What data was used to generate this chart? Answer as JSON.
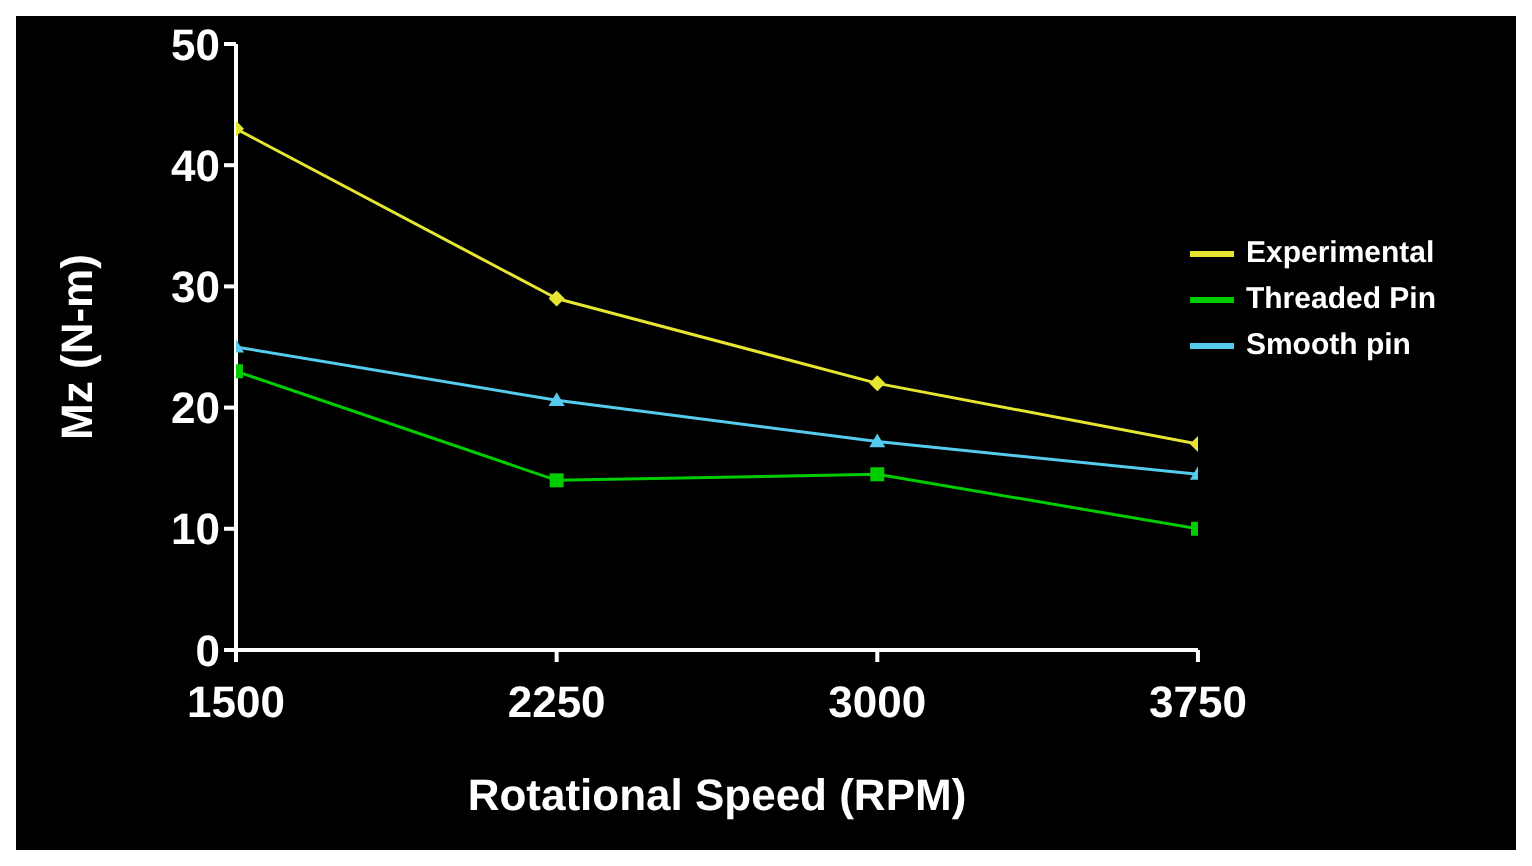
{
  "chart_data": {
    "type": "line",
    "xlabel": "Rotational Speed (RPM)",
    "ylabel": "Mz (N-m)",
    "x": [
      1500,
      2250,
      3000,
      3750
    ],
    "xlim": [
      1500,
      3750
    ],
    "xticks": [
      1500,
      2250,
      3000,
      3750
    ],
    "ylim": [
      0,
      50
    ],
    "yticks": [
      0,
      10,
      20,
      30,
      40,
      50
    ],
    "grid": false,
    "legend": "top right",
    "series": [
      {
        "name": "Experimental",
        "color": "#e6e632",
        "marker": "diamond",
        "values": [
          43,
          29,
          22,
          17
        ]
      },
      {
        "name": "Threaded Pin",
        "color": "#00cc00",
        "marker": "square",
        "values": [
          23,
          14,
          14.5,
          10
        ]
      },
      {
        "name": "Smooth pin",
        "color": "#55ccee",
        "marker": "triangle",
        "values": [
          25,
          20.6,
          17.2,
          14.5
        ]
      }
    ]
  }
}
